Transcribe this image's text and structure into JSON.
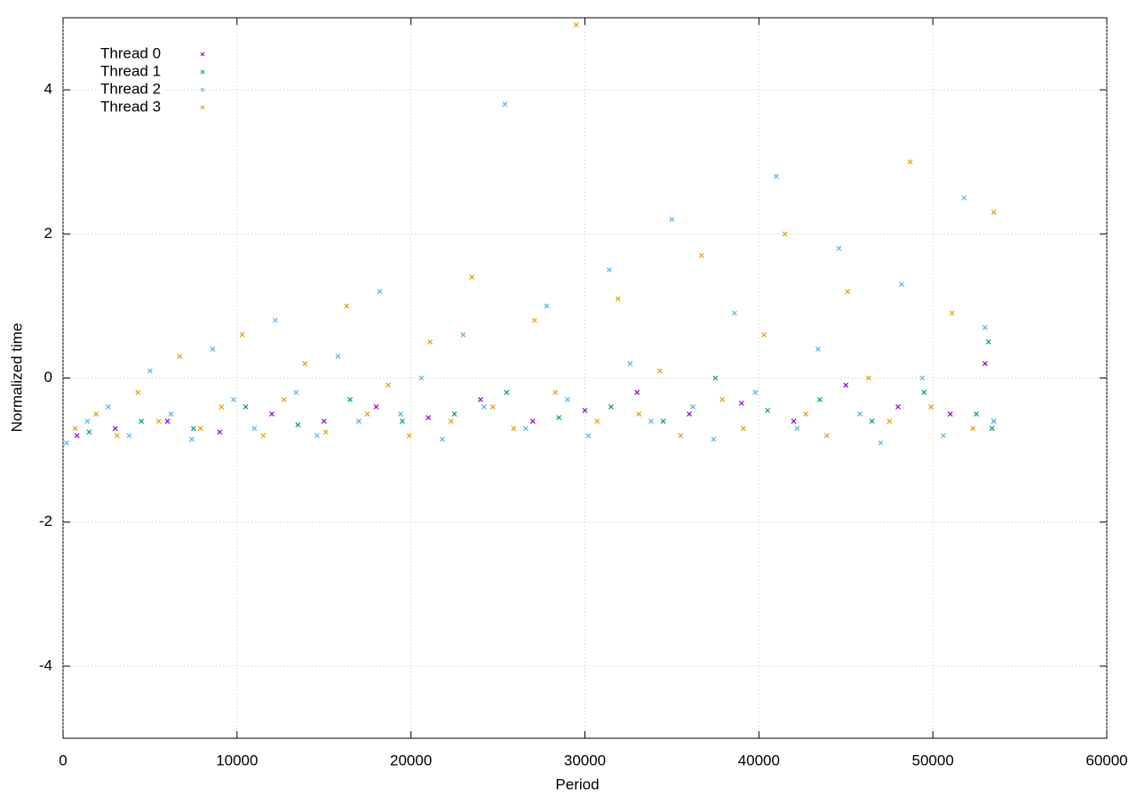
{
  "chart_data": {
    "type": "scatter",
    "x_label": "Period",
    "y_label": "Normalized time",
    "xlim": [
      0,
      60000
    ],
    "xticks": [
      0,
      10000,
      20000,
      30000,
      40000,
      50000,
      60000
    ],
    "ylim": [
      -5,
      5
    ],
    "yticks": [
      -4,
      -2,
      0,
      2,
      4
    ],
    "grid": true,
    "legend": "top-left",
    "series": [
      {
        "name": "Thread 0",
        "color": "#9400d3",
        "x": [
          800,
          3000,
          6000,
          9000,
          12000,
          15000,
          18000,
          21000,
          24000,
          27000,
          30000,
          33000,
          36000,
          39000,
          42000,
          45000,
          48000,
          51000,
          53000,
          53500
        ],
        "values": [
          -0.8,
          -0.7,
          -0.6,
          -0.75,
          -0.5,
          -0.6,
          -0.4,
          -0.55,
          -0.3,
          -0.6,
          -0.45,
          -0.2,
          -0.5,
          -0.35,
          -0.6,
          -0.1,
          -0.4,
          -0.5,
          0.2,
          -0.6
        ]
      },
      {
        "name": "Thread 1",
        "color": "#009e73",
        "x": [
          1500,
          4500,
          7500,
          10500,
          13500,
          16500,
          19500,
          22500,
          25500,
          28500,
          31500,
          34500,
          37500,
          40500,
          43500,
          46500,
          49500,
          52500,
          53200,
          53400
        ],
        "values": [
          -0.75,
          -0.6,
          -0.7,
          -0.4,
          -0.65,
          -0.3,
          -0.6,
          -0.5,
          -0.2,
          -0.55,
          -0.4,
          -0.6,
          0.0,
          -0.45,
          -0.3,
          -0.6,
          -0.2,
          -0.5,
          0.5,
          -0.7
        ]
      },
      {
        "name": "Thread 2",
        "color": "#56b4e9",
        "x": [
          200,
          1400,
          2600,
          3800,
          5000,
          6200,
          7400,
          8600,
          9800,
          11000,
          12200,
          13400,
          14600,
          15800,
          17000,
          18200,
          19400,
          20600,
          21800,
          23000,
          24200,
          25400,
          26600,
          27800,
          29000,
          30200,
          31400,
          32600,
          33800,
          35000,
          36200,
          37400,
          38600,
          39800,
          41000,
          42200,
          43400,
          44600,
          45800,
          47000,
          48200,
          49400,
          50600,
          51800,
          53000,
          53500
        ],
        "values": [
          -0.9,
          -0.6,
          -0.4,
          -0.8,
          0.1,
          -0.5,
          -0.85,
          0.4,
          -0.3,
          -0.7,
          0.8,
          -0.2,
          -0.8,
          0.3,
          -0.6,
          1.2,
          -0.5,
          0.0,
          -0.85,
          0.6,
          -0.4,
          3.8,
          -0.7,
          1.0,
          -0.3,
          -0.8,
          1.5,
          0.2,
          -0.6,
          2.2,
          -0.4,
          -0.85,
          0.9,
          -0.2,
          2.8,
          -0.7,
          0.4,
          1.8,
          -0.5,
          -0.9,
          1.3,
          0.0,
          -0.8,
          2.5,
          0.7,
          -0.6
        ]
      },
      {
        "name": "Thread 3",
        "color": "#e69f00",
        "x": [
          700,
          1900,
          3100,
          4300,
          5500,
          6700,
          7900,
          9100,
          10300,
          11500,
          12700,
          13900,
          15100,
          16300,
          17500,
          18700,
          19900,
          21100,
          22300,
          23500,
          24700,
          25900,
          27100,
          28300,
          29500,
          30700,
          31900,
          33100,
          34300,
          35500,
          36700,
          37900,
          39100,
          40300,
          41500,
          42700,
          43900,
          45100,
          46300,
          47500,
          48700,
          49900,
          51100,
          52300,
          53500
        ],
        "values": [
          -0.7,
          -0.5,
          -0.8,
          -0.2,
          -0.6,
          0.3,
          -0.7,
          -0.4,
          0.6,
          -0.8,
          -0.3,
          0.2,
          -0.75,
          1.0,
          -0.5,
          -0.1,
          -0.8,
          0.5,
          -0.6,
          1.4,
          -0.4,
          -0.7,
          0.8,
          -0.2,
          4.9,
          -0.6,
          1.1,
          -0.5,
          0.1,
          -0.8,
          1.7,
          -0.3,
          -0.7,
          0.6,
          2.0,
          -0.5,
          -0.8,
          1.2,
          0.0,
          -0.6,
          3.0,
          -0.4,
          0.9,
          -0.7,
          2.3
        ]
      }
    ]
  }
}
